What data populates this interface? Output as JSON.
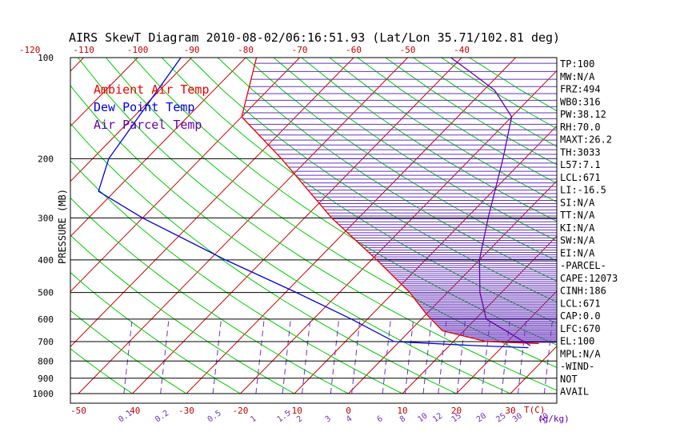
{
  "title": "AIRS SkewT Diagram 2010-08-02/06:16:51.93 (Lat/Lon 35.71/102.81 deg)",
  "ylabel": "PRESSURE (MB)",
  "xlabel": "T(C)",
  "mixing_unit": "(g/kg)",
  "legend": [
    {
      "label": "Ambient Air Temp",
      "color": "#ee0000"
    },
    {
      "label": "Dew Point Temp",
      "color": "#0000dd"
    },
    {
      "label": "Air Parcel Temp",
      "color": "#6600aa"
    }
  ],
  "colors": {
    "isotherm": "#cc0000",
    "dry_adiabat": "#00cc00",
    "mixing_ratio": "#7030c0",
    "isobar": "#000000",
    "cape_hatch": "#6633bb"
  },
  "chart_data": {
    "type": "line",
    "title": "AIRS SkewT Diagram 2010-08-02/06:16:51.93 (Lat/Lon 35.71/102.81 deg)",
    "ylabel": "PRESSURE (MB)",
    "xlabel": "T(C)",
    "y_scale": "log",
    "ylim": [
      1000,
      100
    ],
    "pressure_ticks": [
      "100",
      "200",
      "300",
      "400",
      "500",
      "600",
      "700",
      "800",
      "900",
      "1000"
    ],
    "bottom_temp_ticks": [
      "-50",
      "-40",
      "-30",
      "-20",
      "-10",
      "0",
      "10",
      "20",
      "30"
    ],
    "top_temp_ticks": [
      "-120",
      "-110",
      "-100",
      "-90",
      "-80",
      "-70",
      "-60",
      "-50",
      "-40"
    ],
    "mixing_ratio_labels": [
      "0.1",
      "0.2",
      "0.5",
      "1",
      "1.5",
      "2",
      "3",
      "4",
      "6",
      "8",
      "10",
      "12",
      "15",
      "20",
      "25",
      "30",
      "40"
    ],
    "series": [
      {
        "name": "Ambient Air Temp",
        "points": [
          {
            "p": 100,
            "t": -78
          },
          {
            "p": 150,
            "t": -70
          },
          {
            "p": 200,
            "t": -55
          },
          {
            "p": 250,
            "t": -44
          },
          {
            "p": 300,
            "t": -35
          },
          {
            "p": 400,
            "t": -19
          },
          {
            "p": 500,
            "t": -7
          },
          {
            "p": 580,
            "t": 0
          },
          {
            "p": 650,
            "t": 6
          },
          {
            "p": 700,
            "t": 16
          },
          {
            "p": 710,
            "t": 26.2
          }
        ]
      },
      {
        "name": "Dew Point Temp",
        "points": [
          {
            "p": 100,
            "t": -92
          },
          {
            "p": 200,
            "t": -87
          },
          {
            "p": 250,
            "t": -83
          },
          {
            "p": 300,
            "t": -70
          },
          {
            "p": 400,
            "t": -47
          },
          {
            "p": 500,
            "t": -28
          },
          {
            "p": 600,
            "t": -13
          },
          {
            "p": 700,
            "t": -1
          },
          {
            "p": 720,
            "t": 15
          },
          {
            "p": 730,
            "t": 25
          }
        ]
      },
      {
        "name": "Air Parcel Temp",
        "points": [
          {
            "p": 720,
            "t": 25
          },
          {
            "p": 700,
            "t": 23
          },
          {
            "p": 600,
            "t": 12
          },
          {
            "p": 500,
            "t": 6
          },
          {
            "p": 400,
            "t": 0
          },
          {
            "p": 300,
            "t": -6
          },
          {
            "p": 200,
            "t": -14
          },
          {
            "p": 150,
            "t": -20
          },
          {
            "p": 125,
            "t": -28
          },
          {
            "p": 110,
            "t": -36
          },
          {
            "p": 100,
            "t": -42
          }
        ]
      }
    ]
  },
  "indices": [
    "TP:100",
    "MW:N/A",
    "FRZ:494",
    "WB0:316",
    "PW:38.12",
    "RH:70.0",
    "MAXT:26.2",
    "TH:3033",
    "L57:7.1",
    "LCL:671",
    "LI:-16.5",
    "SI:N/A",
    "TT:N/A",
    "KI:N/A",
    "SW:N/A",
    "EI:N/A",
    "-PARCEL-",
    "CAPE:12073",
    "CINH:186",
    "LCL:671",
    "CAP:0.0",
    "LFC:670",
    "EL:100",
    "MPL:N/A",
    "-WIND-",
    "NOT",
    "AVAIL"
  ]
}
